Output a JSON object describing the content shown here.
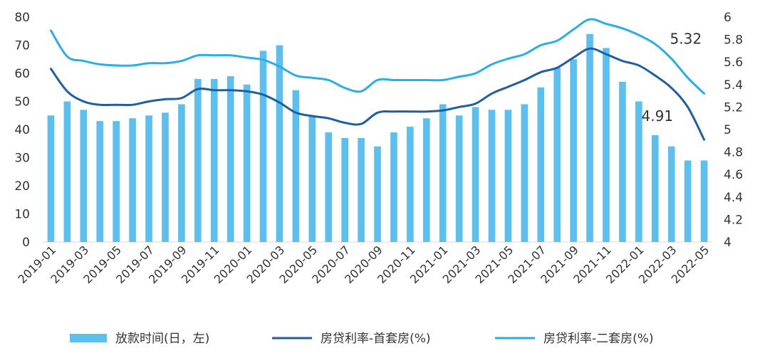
{
  "chart_data": {
    "type": "bar+line",
    "x": [
      "2019-01",
      "2019-02",
      "2019-03",
      "2019-04",
      "2019-05",
      "2019-06",
      "2019-07",
      "2019-08",
      "2019-09",
      "2019-10",
      "2019-11",
      "2019-12",
      "2020-01",
      "2020-02",
      "2020-03",
      "2020-04",
      "2020-05",
      "2020-06",
      "2020-07",
      "2020-08",
      "2020-09",
      "2020-10",
      "2020-11",
      "2020-12",
      "2021-01",
      "2021-02",
      "2021-03",
      "2021-04",
      "2021-05",
      "2021-06",
      "2021-07",
      "2021-08",
      "2021-09",
      "2021-10",
      "2021-11",
      "2021-12",
      "2022-01",
      "2022-02",
      "2022-03",
      "2022-04",
      "2022-05"
    ],
    "x_tick_labels": [
      "2019-01",
      "2019-03",
      "2019-05",
      "2019-07",
      "2019-09",
      "2019-11",
      "2020-01",
      "2020-03",
      "2020-05",
      "2020-07",
      "2020-09",
      "2020-11",
      "2021-01",
      "2021-03",
      "2021-05",
      "2021-07",
      "2021-09",
      "2021-11",
      "2022-01",
      "2022-03",
      "2022-05"
    ],
    "y_left": {
      "ticks": [
        "0",
        "10",
        "20",
        "30",
        "40",
        "50",
        "60",
        "70",
        "80"
      ],
      "ylim": [
        0,
        80
      ]
    },
    "y_right": {
      "ticks": [
        "4",
        "4.2",
        "4.4",
        "4.6",
        "4.8",
        "5",
        "5.2",
        "5.4",
        "5.6",
        "5.8",
        "6"
      ],
      "ylim": [
        4,
        6
      ]
    },
    "grid": false,
    "legend_position": "bottom",
    "series": [
      {
        "name": "放款时间(日，左)",
        "kind": "bar",
        "axis": "left",
        "color": "#5bc0ef",
        "values": [
          45,
          50,
          47,
          43,
          43,
          44,
          45,
          46,
          49,
          58,
          58,
          59,
          56,
          68,
          70,
          54,
          45,
          39,
          37,
          37,
          34,
          39,
          41,
          44,
          49,
          45,
          48,
          47,
          47,
          49,
          55,
          62,
          65,
          74,
          69,
          57,
          50,
          38,
          34,
          29,
          29
        ]
      },
      {
        "name": "房贷利率-首套房(%)",
        "kind": "line",
        "axis": "right",
        "color": "#1f5fa0",
        "values": [
          5.54,
          5.34,
          5.25,
          5.22,
          5.22,
          5.22,
          5.25,
          5.27,
          5.28,
          5.36,
          5.35,
          5.35,
          5.34,
          5.31,
          5.24,
          5.15,
          5.12,
          5.1,
          5.06,
          5.05,
          5.15,
          5.16,
          5.16,
          5.16,
          5.17,
          5.2,
          5.23,
          5.32,
          5.38,
          5.44,
          5.51,
          5.55,
          5.64,
          5.72,
          5.67,
          5.61,
          5.57,
          5.48,
          5.37,
          5.2,
          4.91
        ]
      },
      {
        "name": "房贷利率-二套房(%)",
        "kind": "line",
        "axis": "right",
        "color": "#29aee6",
        "values": [
          5.88,
          5.65,
          5.61,
          5.58,
          5.57,
          5.57,
          5.59,
          5.59,
          5.61,
          5.66,
          5.66,
          5.66,
          5.64,
          5.62,
          5.56,
          5.48,
          5.46,
          5.44,
          5.37,
          5.34,
          5.44,
          5.44,
          5.44,
          5.44,
          5.44,
          5.47,
          5.5,
          5.58,
          5.63,
          5.67,
          5.75,
          5.79,
          5.89,
          5.98,
          5.94,
          5.9,
          5.84,
          5.76,
          5.63,
          5.46,
          5.32
        ]
      }
    ],
    "annotations": [
      {
        "text": "5.32",
        "series": 2,
        "index": 40
      },
      {
        "text": "4.91",
        "series": 1,
        "index": 40
      }
    ]
  }
}
